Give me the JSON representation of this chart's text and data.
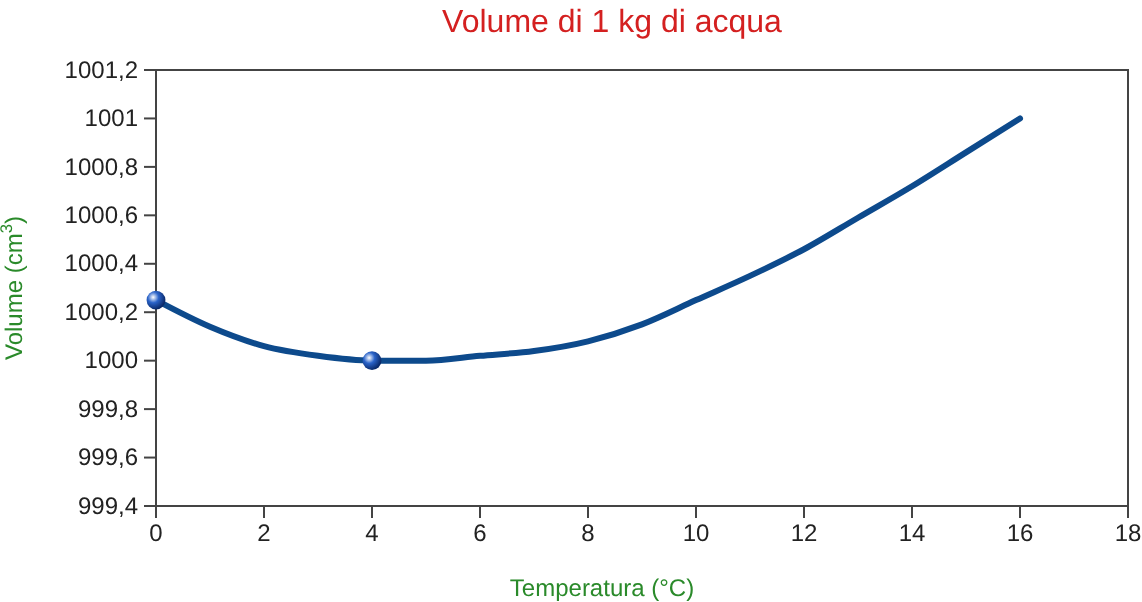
{
  "chart_data": {
    "type": "line",
    "title": "Volume di 1 kg di acqua",
    "xlabel": "Temperatura (°C)",
    "ylabel": "Volume (cm$^{3}$)",
    "xlim": [
      0,
      18
    ],
    "xticks": [
      0,
      2,
      4,
      6,
      8,
      10,
      12,
      14,
      16,
      18
    ],
    "ylim": [
      999.4,
      1001.2
    ],
    "yticks": [
      {
        "value": 999.4,
        "label": "999,4"
      },
      {
        "value": 999.6,
        "label": "999,6"
      },
      {
        "value": 999.8,
        "label": "999,8"
      },
      1000,
      {
        "value": 1000.2,
        "label": "1000,2"
      },
      {
        "value": 1000.4,
        "label": "1000,4"
      },
      {
        "value": 1000.6,
        "label": "1000,6"
      },
      {
        "value": 1000.8,
        "label": "1000,8"
      },
      1001,
      {
        "value": 1001.2,
        "label": "1001,2"
      }
    ],
    "grid": false,
    "series": [
      {
        "color": "#0d4a8c",
        "marker": "none",
        "line_style": "solid",
        "x": [
          0,
          1,
          2,
          3,
          4,
          5,
          6,
          7,
          8,
          9,
          10,
          11,
          12,
          13,
          14,
          15,
          16
        ],
        "values": [
          1000.25,
          1000.14,
          1000.06,
          1000.02,
          1000.0,
          1000.0,
          1000.02,
          1000.04,
          1000.08,
          1000.15,
          1000.25,
          1000.35,
          1000.46,
          1000.59,
          1000.72,
          1000.86,
          1001.0
        ]
      },
      {
        "type": "scatter",
        "color": "#2a63c9",
        "marker": "circle",
        "x": [
          0,
          4
        ],
        "values": [
          1000.25,
          1000.0
        ]
      }
    ]
  }
}
